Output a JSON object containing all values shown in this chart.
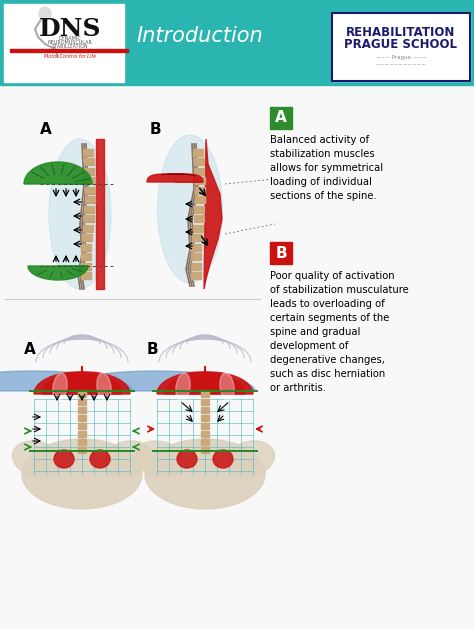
{
  "title": "Introduction",
  "bg_header_color": "#2ab5b0",
  "white": "#ffffff",
  "label_A_color": "#2e8b2e",
  "label_B_color": "#cc1111",
  "text_A": "Balanced activity of\nstabilization muscles\nallows for symmetrical\nloading of individual\nsections of the spine.",
  "text_B": "Poor quality of activation\nof stabilization musculature\nleads to overloading of\ncertain segments of the\nspine and gradual\ndevelopment of\ndegenerative changes,\nsuch as disc herniation\nor arthritis.",
  "rehab_text1": "REHABILITATION",
  "rehab_text2": "PRAGUE SCHOOL",
  "dns_color": "#111111",
  "red": "#cc1111",
  "green": "#228B22",
  "light_blue": "#b8dde8",
  "spine_color": "#c8a87a",
  "teal_grid": "#4ab8c8",
  "arrow_black": "#111111",
  "body_bg": "#f8f8f8"
}
